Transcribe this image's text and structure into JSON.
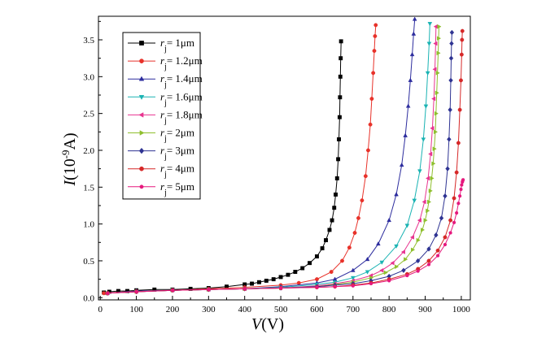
{
  "chart_data": {
    "type": "line",
    "xlabel": {
      "symbol": "V",
      "unit": "(V)"
    },
    "ylabel": {
      "symbol": "I",
      "unit_pre": "(10",
      "unit_exp": "-9",
      "unit_post": "A)"
    },
    "xlim": [
      -5,
      1025
    ],
    "ylim": [
      -0.03,
      3.82
    ],
    "x_ticks": [
      0,
      100,
      200,
      300,
      400,
      500,
      600,
      700,
      800,
      900,
      1000
    ],
    "y_ticks": [
      0.0,
      0.5,
      1.0,
      1.5,
      2.0,
      2.5,
      3.0,
      3.5
    ],
    "y_tick_labels": [
      "0.0",
      "0.5",
      "1.0",
      "1.5",
      "2.0",
      "2.5",
      "3.0",
      "3.5"
    ],
    "grid": false,
    "legend_position": "top-left",
    "series": [
      {
        "name_prefix": "r",
        "name_sub": "j",
        "name_suffix": "= 1μm",
        "color": "#000000",
        "marker": "square",
        "x": [
          10,
          25,
          50,
          75,
          100,
          150,
          200,
          250,
          300,
          350,
          400,
          420,
          440,
          460,
          480,
          500,
          520,
          540,
          560,
          580,
          600,
          615,
          625,
          635,
          642,
          648,
          652,
          656,
          659,
          661,
          663,
          664,
          665,
          666,
          667
        ],
        "y": [
          0.07,
          0.08,
          0.09,
          0.09,
          0.1,
          0.11,
          0.11,
          0.12,
          0.13,
          0.15,
          0.18,
          0.19,
          0.21,
          0.23,
          0.25,
          0.28,
          0.31,
          0.35,
          0.4,
          0.47,
          0.56,
          0.67,
          0.78,
          0.92,
          1.05,
          1.22,
          1.4,
          1.62,
          1.88,
          2.15,
          2.45,
          2.72,
          3.0,
          3.25,
          3.48
        ]
      },
      {
        "name_prefix": "r",
        "name_sub": "j",
        "name_suffix": "= 1.2μm",
        "color": "#e8322a",
        "marker": "circle",
        "x": [
          10,
          100,
          200,
          300,
          400,
          500,
          550,
          600,
          640,
          670,
          690,
          705,
          715,
          725,
          735,
          742,
          748,
          752,
          756,
          759,
          761,
          763
        ],
        "y": [
          0.06,
          0.09,
          0.1,
          0.12,
          0.14,
          0.17,
          0.2,
          0.25,
          0.35,
          0.5,
          0.68,
          0.88,
          1.08,
          1.32,
          1.65,
          2.0,
          2.35,
          2.7,
          3.05,
          3.35,
          3.55,
          3.7
        ]
      },
      {
        "name_prefix": "r",
        "name_sub": "j",
        "name_suffix": "= 1.4μm",
        "color": "#2d2d9e",
        "marker": "triangle-up",
        "x": [
          20,
          100,
          200,
          300,
          400,
          500,
          600,
          650,
          700,
          740,
          770,
          800,
          820,
          835,
          845,
          853,
          859,
          864,
          868,
          871
        ],
        "y": [
          0.06,
          0.09,
          0.1,
          0.11,
          0.12,
          0.15,
          0.2,
          0.25,
          0.37,
          0.52,
          0.73,
          1.05,
          1.4,
          1.8,
          2.2,
          2.6,
          2.95,
          3.3,
          3.58,
          3.78
        ]
      },
      {
        "name_prefix": "r",
        "name_sub": "j",
        "name_suffix": "= 1.6μm",
        "color": "#1ab3b3",
        "marker": "triangle-down",
        "x": [
          20,
          100,
          200,
          300,
          400,
          500,
          600,
          650,
          700,
          740,
          780,
          820,
          850,
          870,
          885,
          895,
          902,
          907,
          911,
          913
        ],
        "y": [
          0.06,
          0.08,
          0.1,
          0.11,
          0.12,
          0.14,
          0.18,
          0.21,
          0.27,
          0.35,
          0.48,
          0.7,
          0.98,
          1.32,
          1.72,
          2.15,
          2.6,
          3.05,
          3.45,
          3.72
        ]
      },
      {
        "name_prefix": "r",
        "name_sub": "j",
        "name_suffix": "= 1.8μm",
        "color": "#e8338f",
        "marker": "triangle-left",
        "x": [
          20,
          100,
          200,
          300,
          400,
          500,
          600,
          650,
          700,
          750,
          780,
          810,
          840,
          865,
          885,
          898,
          908,
          915,
          920,
          924,
          927,
          929,
          930
        ],
        "y": [
          0.06,
          0.08,
          0.1,
          0.11,
          0.12,
          0.13,
          0.16,
          0.19,
          0.23,
          0.3,
          0.37,
          0.47,
          0.62,
          0.82,
          1.05,
          1.3,
          1.62,
          1.95,
          2.3,
          2.7,
          3.1,
          3.45,
          3.68
        ]
      },
      {
        "name_prefix": "r",
        "name_sub": "j",
        "name_suffix": "= 2μm",
        "color": "#8fbf2e",
        "marker": "triangle-right",
        "x": [
          20,
          100,
          200,
          300,
          400,
          500,
          600,
          650,
          700,
          750,
          790,
          820,
          845,
          865,
          880,
          892,
          900,
          906,
          910,
          914,
          918,
          922,
          925,
          928,
          930,
          932,
          934,
          936,
          937,
          938
        ],
        "y": [
          0.06,
          0.08,
          0.1,
          0.11,
          0.12,
          0.13,
          0.15,
          0.18,
          0.21,
          0.27,
          0.34,
          0.42,
          0.52,
          0.65,
          0.78,
          0.92,
          1.05,
          1.18,
          1.3,
          1.45,
          1.62,
          1.82,
          2.02,
          2.25,
          2.5,
          2.78,
          3.05,
          3.32,
          3.52,
          3.68
        ]
      },
      {
        "name_prefix": "r",
        "name_sub": "j",
        "name_suffix": "= 3μm",
        "color": "#2e3392",
        "marker": "diamond",
        "x": [
          20,
          100,
          200,
          300,
          400,
          500,
          600,
          650,
          700,
          750,
          800,
          840,
          880,
          910,
          930,
          945,
          955,
          962,
          966,
          969,
          971,
          972,
          973,
          974
        ],
        "y": [
          0.06,
          0.08,
          0.1,
          0.11,
          0.12,
          0.13,
          0.15,
          0.17,
          0.19,
          0.23,
          0.29,
          0.37,
          0.5,
          0.66,
          0.85,
          1.08,
          1.38,
          1.75,
          2.15,
          2.55,
          2.95,
          3.25,
          3.45,
          3.6
        ]
      },
      {
        "name_prefix": "r",
        "name_sub": "j",
        "name_suffix": "= 4μm",
        "color": "#d62828",
        "marker": "circle",
        "x": [
          20,
          100,
          200,
          300,
          400,
          500,
          600,
          650,
          700,
          750,
          800,
          850,
          880,
          910,
          935,
          955,
          970,
          980,
          987,
          992,
          996,
          999,
          1001,
          1002,
          1003
        ],
        "y": [
          0.06,
          0.08,
          0.1,
          0.11,
          0.12,
          0.13,
          0.14,
          0.15,
          0.17,
          0.2,
          0.25,
          0.32,
          0.39,
          0.5,
          0.64,
          0.82,
          1.05,
          1.35,
          1.7,
          2.1,
          2.55,
          2.95,
          3.3,
          3.5,
          3.62
        ]
      },
      {
        "name_prefix": "r",
        "name_sub": "j",
        "name_suffix": "= 5μm",
        "color": "#e6187d",
        "marker": "circle-small",
        "x": [
          20,
          100,
          200,
          300,
          400,
          500,
          600,
          650,
          700,
          750,
          800,
          850,
          880,
          910,
          935,
          955,
          970,
          980,
          987,
          992,
          996,
          999,
          1001,
          1003,
          1004,
          1005
        ],
        "y": [
          0.06,
          0.08,
          0.1,
          0.11,
          0.12,
          0.13,
          0.14,
          0.15,
          0.16,
          0.19,
          0.23,
          0.3,
          0.36,
          0.45,
          0.57,
          0.72,
          0.88,
          1.02,
          1.15,
          1.28,
          1.38,
          1.47,
          1.53,
          1.57,
          1.59,
          1.6
        ]
      }
    ]
  }
}
